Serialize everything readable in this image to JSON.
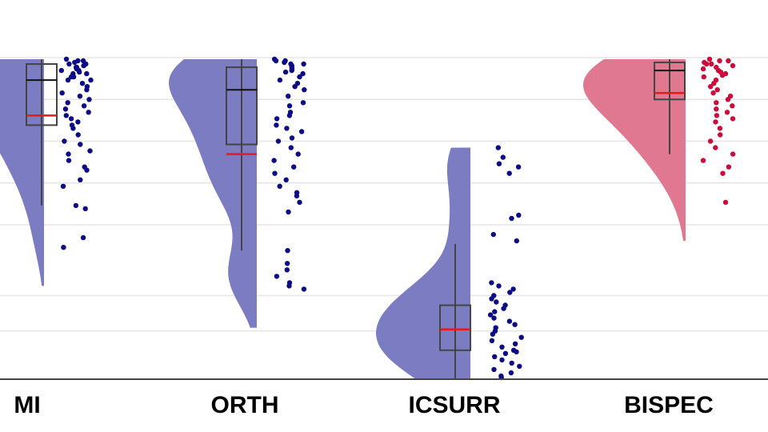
{
  "chart_data": {
    "type": "raincloud",
    "title": "",
    "xlabel": "",
    "ylabel": "",
    "ylim": [
      0,
      1
    ],
    "grid": true,
    "categories": [
      "MI",
      "ORTH",
      "ICSURR",
      "BISPEC"
    ],
    "colors": {
      "MI": "#7b7cc2",
      "ORTH": "#7b7cc2",
      "ICSURR": "#7b7cc2",
      "BISPEC": "#e07892",
      "points_default": "#0d0c84",
      "points_BISPEC": "#cc0d3c",
      "mean_line": "#e8191b",
      "box": "#444444",
      "grid": "#e6e6e6"
    },
    "series": [
      {
        "category": "MI",
        "box": {
          "min": 0.54,
          "q1": 0.79,
          "median": 0.93,
          "q3": 0.98,
          "max": 0.995
        },
        "mean": 0.82,
        "points": [
          0.995,
          0.99,
          0.99,
          0.985,
          0.98,
          0.98,
          0.975,
          0.97,
          0.97,
          0.965,
          0.96,
          0.96,
          0.955,
          0.95,
          0.95,
          0.94,
          0.94,
          0.93,
          0.93,
          0.92,
          0.91,
          0.9,
          0.89,
          0.88,
          0.87,
          0.86,
          0.85,
          0.84,
          0.83,
          0.82,
          0.81,
          0.8,
          0.79,
          0.78,
          0.76,
          0.74,
          0.73,
          0.71,
          0.7,
          0.68,
          0.66,
          0.65,
          0.62,
          0.6,
          0.54,
          0.53,
          0.44,
          0.41
        ]
      },
      {
        "category": "ORTH",
        "box": {
          "min": 0.4,
          "q1": 0.73,
          "median": 0.9,
          "q3": 0.97,
          "max": 0.995
        },
        "mean": 0.7,
        "points": [
          0.995,
          0.99,
          0.99,
          0.985,
          0.98,
          0.98,
          0.975,
          0.97,
          0.965,
          0.96,
          0.955,
          0.95,
          0.94,
          0.93,
          0.92,
          0.91,
          0.9,
          0.88,
          0.86,
          0.85,
          0.83,
          0.82,
          0.81,
          0.79,
          0.78,
          0.77,
          0.75,
          0.74,
          0.72,
          0.7,
          0.68,
          0.66,
          0.64,
          0.62,
          0.6,
          0.58,
          0.57,
          0.55,
          0.52,
          0.4,
          0.36,
          0.34,
          0.32,
          0.3,
          0.29,
          0.28
        ]
      },
      {
        "category": "ICSURR",
        "box": {
          "min": 0.0,
          "q1": 0.09,
          "median": 0.155,
          "q3": 0.23,
          "max": 0.42
        },
        "mean": 0.155,
        "points": [
          0.72,
          0.69,
          0.67,
          0.66,
          0.64,
          0.51,
          0.5,
          0.45,
          0.43,
          0.3,
          0.29,
          0.28,
          0.27,
          0.26,
          0.25,
          0.24,
          0.23,
          0.22,
          0.21,
          0.2,
          0.19,
          0.18,
          0.17,
          0.16,
          0.15,
          0.14,
          0.13,
          0.12,
          0.11,
          0.1,
          0.09,
          0.085,
          0.08,
          0.07,
          0.06,
          0.05,
          0.04,
          0.03,
          0.02,
          0.01,
          0.005
        ]
      },
      {
        "category": "BISPEC",
        "box": {
          "min": 0.7,
          "q1": 0.87,
          "median": 0.96,
          "q3": 0.985,
          "max": 0.995
        },
        "mean": 0.89,
        "points": [
          0.995,
          0.99,
          0.99,
          0.985,
          0.98,
          0.98,
          0.975,
          0.97,
          0.965,
          0.96,
          0.955,
          0.95,
          0.945,
          0.94,
          0.93,
          0.92,
          0.91,
          0.9,
          0.89,
          0.88,
          0.87,
          0.86,
          0.85,
          0.84,
          0.83,
          0.82,
          0.81,
          0.8,
          0.78,
          0.76,
          0.74,
          0.72,
          0.7,
          0.68,
          0.66,
          0.64,
          0.55
        ]
      }
    ]
  }
}
